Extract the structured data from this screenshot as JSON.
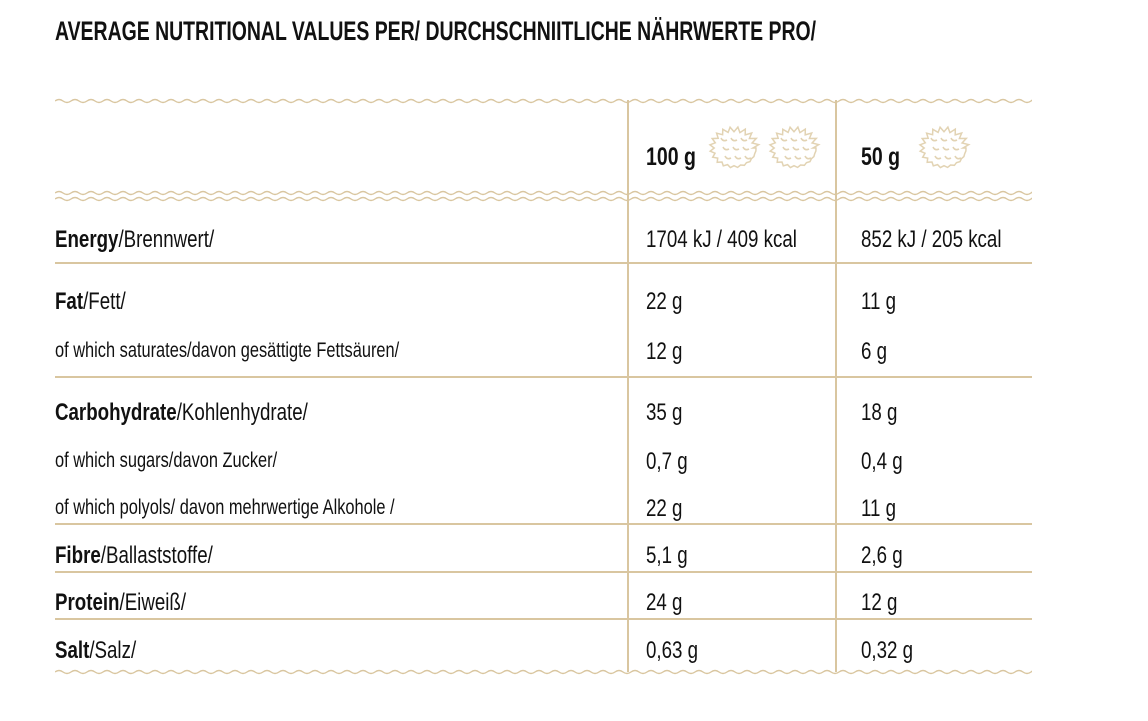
{
  "title": "AVERAGE NUTRITIONAL VALUES PER/ DURCHSCHNIITLICHE NÄHRWERTE PRO/",
  "colors": {
    "line": "#d9c6a0",
    "text": "#111111"
  },
  "columns": [
    {
      "label": "100 g",
      "icon": "waffle-icon x2"
    },
    {
      "label": "50 g",
      "icon": "waffle-icon x1"
    }
  ],
  "rows": [
    {
      "bold": "Energy",
      "rest": "/Brennwert/",
      "v100": "1704 kJ / 409 kcal",
      "v50": "852 kJ / 205 kcal"
    },
    {
      "bold": "Fat",
      "rest": "/Fett/",
      "v100": "22 g",
      "v50": "11 g"
    },
    {
      "bold": "",
      "rest": "of which saturates/davon gesättigte Fettsäuren/",
      "v100": "12 g",
      "v50": "6 g"
    },
    {
      "bold": "Carbohydrate",
      "rest": "/Kohlenhydrate/",
      "v100": "35 g",
      "v50": "18 g"
    },
    {
      "bold": "",
      "rest": "of which sugars/davon Zucker/",
      "v100": "0,7 g",
      "v50": "0,4 g"
    },
    {
      "bold": "",
      "rest": "of which polyols/ davon mehrwertige Alkohole /",
      "v100": "22 g",
      "v50": "11 g"
    },
    {
      "bold": "Fibre",
      "rest": "/Ballaststoffe/",
      "v100": "5,1 g",
      "v50": "2,6 g"
    },
    {
      "bold": "Protein",
      "rest": "/Eiweiß/",
      "v100": "24 g",
      "v50": "12 g"
    },
    {
      "bold": "Salt",
      "rest": "/Salz/",
      "v100": "0,63 g",
      "v50": "0,32 g"
    }
  ]
}
